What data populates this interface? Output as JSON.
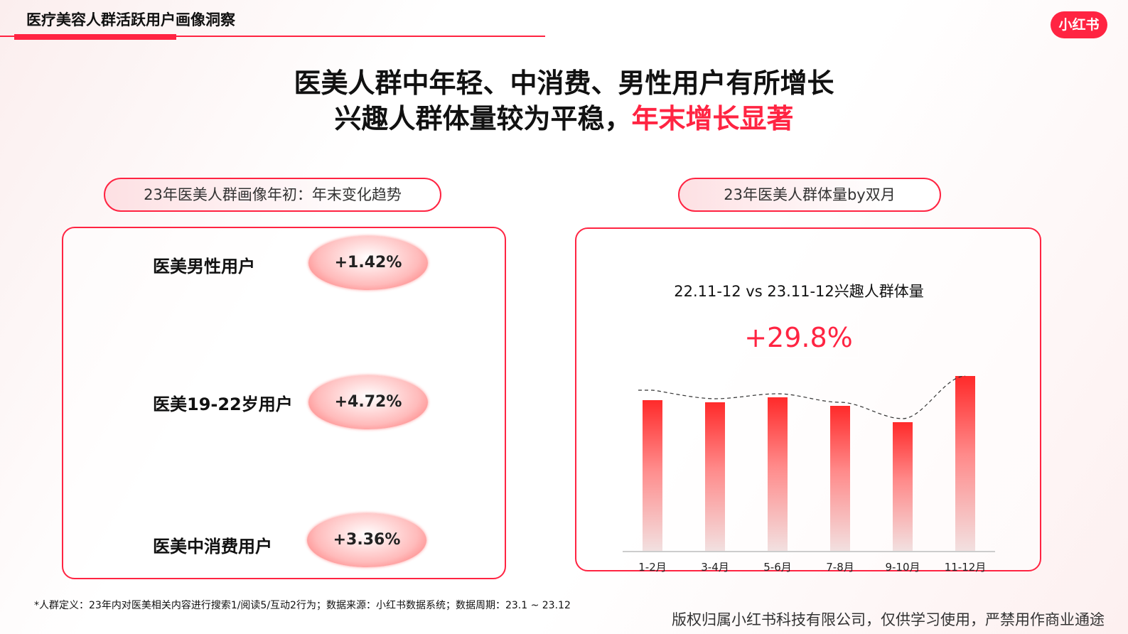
{
  "header": {
    "title": "医疗美容人群活跃用户画像洞察",
    "logo": "小红书"
  },
  "headline": {
    "line1": "医美人群中年轻、中消费、男性用户有所增长",
    "line2_prefix": "兴趣人群体量较为平稳，",
    "line2_highlight": "年末增长显著"
  },
  "left": {
    "title": "23年医美人群画像年初：年末变化趋势",
    "metrics": [
      {
        "label": "医美男性用户",
        "value": "+1.42%"
      },
      {
        "label": "医美19-22岁用户",
        "value": "+4.72%"
      },
      {
        "label": "医美中消费用户",
        "value": "+3.36%"
      }
    ]
  },
  "right": {
    "title": "23年医美人群体量by双月"
  },
  "chart_data": {
    "type": "bar",
    "title": "22.11-12 vs 23.11-12兴趣人群体量",
    "annotation": "+29.8%",
    "categories": [
      "1-2月",
      "3-4月",
      "5-6月",
      "7-8月",
      "9-10月",
      "11-12月"
    ],
    "values": [
      212,
      209,
      216,
      204,
      181,
      246
    ],
    "trendline": "dashed",
    "grid": false,
    "bar_color": "#ff2442"
  },
  "footnote": "*人群定义：23年内对医美相关内容进行搜索1/阅读5/互动2行为；数据来源：小红书数据系统；数据周期：23.1 ~ 23.12",
  "copyright": "版权归属小红书科技有限公司，仅供学习使用，严禁用作商业通途"
}
